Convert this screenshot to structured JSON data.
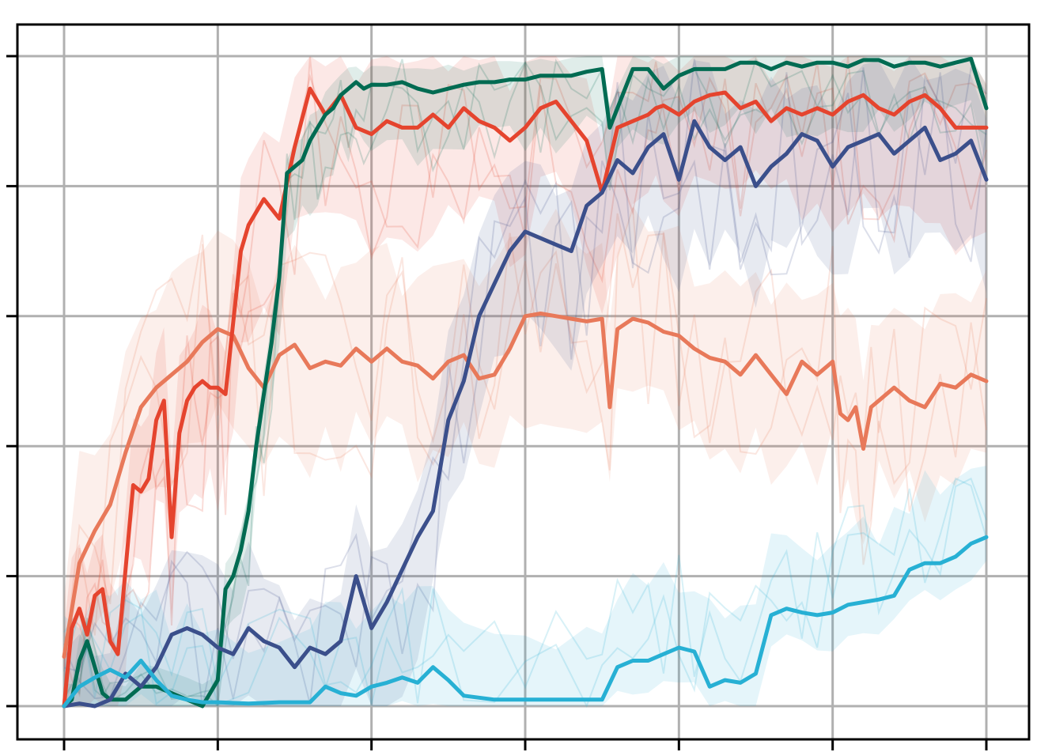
{
  "chart_data": {
    "type": "line",
    "title": "",
    "xlabel": "",
    "ylabel": "",
    "xlim": [
      0,
      6
    ],
    "ylim": [
      0,
      5
    ],
    "x_ticks": [
      0,
      1,
      2,
      3,
      4,
      5,
      6
    ],
    "y_ticks": [
      0,
      1,
      2,
      3,
      4,
      5
    ],
    "tick_labels_visible": false,
    "grid": true,
    "legend": "none",
    "bands_shown": true,
    "series": [
      {
        "color": "#e8795a",
        "x": [
          0,
          0.1,
          0.2,
          0.3,
          0.4,
          0.5,
          0.6,
          0.7,
          0.8,
          0.9,
          1.0,
          1.1,
          1.2,
          1.3,
          1.4,
          1.5,
          1.6,
          1.7,
          1.8,
          1.9,
          2.0,
          2.1,
          2.2,
          2.3,
          2.4,
          2.5,
          2.6,
          2.7,
          2.8,
          2.9,
          3.0,
          3.1,
          3.2,
          3.3,
          3.4,
          3.5,
          3.55,
          3.6,
          3.7,
          3.8,
          3.9,
          4.0,
          4.1,
          4.2,
          4.3,
          4.4,
          4.5,
          4.6,
          4.7,
          4.8,
          4.9,
          5.0,
          5.05,
          5.1,
          5.15,
          5.2,
          5.25,
          5.3,
          5.4,
          5.5,
          5.6,
          5.7,
          5.8,
          5.9,
          6.0
        ],
        "y": [
          0.38,
          1.1,
          1.35,
          1.55,
          1.95,
          2.3,
          2.45,
          2.55,
          2.65,
          2.8,
          2.9,
          2.85,
          2.6,
          2.45,
          2.7,
          2.78,
          2.6,
          2.65,
          2.62,
          2.75,
          2.65,
          2.75,
          2.65,
          2.62,
          2.52,
          2.65,
          2.7,
          2.52,
          2.55,
          2.75,
          3.0,
          3.02,
          3.0,
          2.98,
          2.96,
          2.98,
          2.3,
          2.9,
          2.98,
          2.95,
          2.88,
          2.85,
          2.75,
          2.68,
          2.65,
          2.55,
          2.7,
          2.55,
          2.4,
          2.65,
          2.55,
          2.65,
          2.25,
          2.2,
          2.3,
          1.98,
          2.3,
          2.35,
          2.45,
          2.35,
          2.3,
          2.48,
          2.45,
          2.55,
          2.5
        ],
        "band_low": 0.9,
        "band_high": 0.9
      },
      {
        "color": "#e5442e",
        "x": [
          0,
          0.05,
          0.1,
          0.15,
          0.2,
          0.25,
          0.3,
          0.35,
          0.4,
          0.45,
          0.5,
          0.55,
          0.6,
          0.65,
          0.7,
          0.75,
          0.8,
          0.85,
          0.9,
          0.95,
          1.0,
          1.05,
          1.1,
          1.15,
          1.2,
          1.3,
          1.4,
          1.5,
          1.6,
          1.7,
          1.8,
          1.9,
          2.0,
          2.1,
          2.2,
          2.3,
          2.4,
          2.5,
          2.6,
          2.7,
          2.8,
          2.9,
          3.0,
          3.1,
          3.2,
          3.3,
          3.4,
          3.5,
          3.6,
          3.7,
          3.8,
          3.85,
          3.9,
          4.0,
          4.1,
          4.2,
          4.3,
          4.4,
          4.5,
          4.6,
          4.7,
          4.8,
          4.9,
          5.0,
          5.1,
          5.2,
          5.3,
          5.4,
          5.5,
          5.6,
          5.7,
          5.8,
          5.9,
          6.0
        ],
        "y": [
          0.0,
          0.6,
          0.75,
          0.55,
          0.85,
          0.9,
          0.5,
          0.4,
          1.05,
          1.7,
          1.65,
          1.75,
          2.2,
          2.35,
          1.3,
          2.1,
          2.35,
          2.45,
          2.5,
          2.45,
          2.45,
          2.4,
          2.95,
          3.5,
          3.7,
          3.9,
          3.75,
          4.3,
          4.75,
          4.55,
          4.7,
          4.45,
          4.4,
          4.5,
          4.45,
          4.45,
          4.55,
          4.45,
          4.6,
          4.5,
          4.45,
          4.35,
          4.45,
          4.6,
          4.65,
          4.5,
          4.35,
          3.95,
          4.45,
          4.5,
          4.55,
          4.6,
          4.62,
          4.55,
          4.65,
          4.7,
          4.72,
          4.6,
          4.65,
          4.5,
          4.6,
          4.55,
          4.6,
          4.55,
          4.65,
          4.7,
          4.6,
          4.55,
          4.65,
          4.7,
          4.6,
          4.45,
          4.45,
          4.45
        ],
        "band_low": 1.0,
        "band_high": 0.6
      },
      {
        "color": "#006b52",
        "x": [
          0,
          0.05,
          0.1,
          0.15,
          0.2,
          0.25,
          0.3,
          0.4,
          0.5,
          0.6,
          0.7,
          0.8,
          0.9,
          0.95,
          1.0,
          1.05,
          1.1,
          1.15,
          1.2,
          1.25,
          1.3,
          1.35,
          1.4,
          1.45,
          1.5,
          1.55,
          1.6,
          1.65,
          1.7,
          1.75,
          1.8,
          1.85,
          1.9,
          1.95,
          2.0,
          2.1,
          2.2,
          2.3,
          2.4,
          2.5,
          2.6,
          2.7,
          2.8,
          2.9,
          3.0,
          3.1,
          3.2,
          3.3,
          3.4,
          3.5,
          3.55,
          3.6,
          3.7,
          3.8,
          3.9,
          4.0,
          4.1,
          4.2,
          4.3,
          4.4,
          4.5,
          4.6,
          4.7,
          4.8,
          4.9,
          5.0,
          5.1,
          5.2,
          5.3,
          5.4,
          5.5,
          5.6,
          5.7,
          5.8,
          5.9,
          6.0
        ],
        "y": [
          0.0,
          0.05,
          0.35,
          0.5,
          0.3,
          0.1,
          0.05,
          0.05,
          0.15,
          0.15,
          0.1,
          0.05,
          0.0,
          0.1,
          0.2,
          0.9,
          1.0,
          1.2,
          1.5,
          2.0,
          2.4,
          2.8,
          3.3,
          4.1,
          4.15,
          4.2,
          4.35,
          4.45,
          4.55,
          4.6,
          4.7,
          4.75,
          4.8,
          4.75,
          4.78,
          4.78,
          4.8,
          4.75,
          4.72,
          4.75,
          4.78,
          4.8,
          4.8,
          4.82,
          4.82,
          4.85,
          4.85,
          4.85,
          4.88,
          4.9,
          4.45,
          4.6,
          4.9,
          4.9,
          4.75,
          4.85,
          4.9,
          4.9,
          4.9,
          4.95,
          4.95,
          4.9,
          4.95,
          4.92,
          4.95,
          4.95,
          4.92,
          4.97,
          4.97,
          4.92,
          4.95,
          4.95,
          4.92,
          4.95,
          4.98,
          4.6
        ],
        "band_low": 0.6,
        "band_high": 0.2
      },
      {
        "color": "#3b4f8b",
        "x": [
          0,
          0.1,
          0.2,
          0.3,
          0.4,
          0.5,
          0.6,
          0.7,
          0.8,
          0.9,
          1.0,
          1.1,
          1.2,
          1.3,
          1.4,
          1.5,
          1.6,
          1.7,
          1.8,
          1.9,
          2.0,
          2.1,
          2.2,
          2.3,
          2.4,
          2.5,
          2.6,
          2.7,
          2.8,
          2.9,
          3.0,
          3.1,
          3.2,
          3.3,
          3.4,
          3.5,
          3.6,
          3.7,
          3.8,
          3.9,
          4.0,
          4.1,
          4.2,
          4.3,
          4.4,
          4.5,
          4.6,
          4.7,
          4.8,
          4.9,
          5.0,
          5.1,
          5.2,
          5.3,
          5.4,
          5.5,
          5.6,
          5.7,
          5.8,
          5.9,
          6.0
        ],
        "y": [
          0.0,
          0.02,
          0.0,
          0.05,
          0.25,
          0.15,
          0.3,
          0.55,
          0.6,
          0.55,
          0.45,
          0.4,
          0.6,
          0.5,
          0.45,
          0.3,
          0.45,
          0.4,
          0.5,
          1.0,
          0.6,
          0.8,
          1.05,
          1.3,
          1.5,
          2.2,
          2.5,
          3.0,
          3.25,
          3.5,
          3.65,
          3.6,
          3.55,
          3.5,
          3.85,
          3.95,
          4.2,
          4.1,
          4.3,
          4.4,
          4.05,
          4.5,
          4.3,
          4.2,
          4.3,
          4.0,
          4.15,
          4.25,
          4.4,
          4.35,
          4.15,
          4.3,
          4.35,
          4.4,
          4.25,
          4.35,
          4.45,
          4.2,
          4.25,
          4.35,
          4.05
        ],
        "band_low": 1.0,
        "band_high": 0.7
      },
      {
        "color": "#27b0d4",
        "x": [
          0,
          0.1,
          0.2,
          0.3,
          0.4,
          0.5,
          0.6,
          0.7,
          0.8,
          0.9,
          1.0,
          1.2,
          1.4,
          1.6,
          1.7,
          1.8,
          1.9,
          2.0,
          2.1,
          2.2,
          2.3,
          2.4,
          2.5,
          2.6,
          2.8,
          3.0,
          3.2,
          3.4,
          3.5,
          3.6,
          3.7,
          3.8,
          3.9,
          4.0,
          4.1,
          4.2,
          4.3,
          4.4,
          4.5,
          4.6,
          4.7,
          4.8,
          4.9,
          5.0,
          5.1,
          5.2,
          5.3,
          5.4,
          5.5,
          5.6,
          5.7,
          5.8,
          5.9,
          6.0
        ],
        "y": [
          0.0,
          0.15,
          0.22,
          0.28,
          0.22,
          0.35,
          0.2,
          0.08,
          0.05,
          0.03,
          0.03,
          0.02,
          0.03,
          0.03,
          0.15,
          0.1,
          0.08,
          0.15,
          0.18,
          0.22,
          0.18,
          0.3,
          0.2,
          0.08,
          0.05,
          0.05,
          0.05,
          0.05,
          0.05,
          0.3,
          0.35,
          0.35,
          0.4,
          0.45,
          0.42,
          0.15,
          0.2,
          0.18,
          0.25,
          0.7,
          0.75,
          0.72,
          0.7,
          0.72,
          0.78,
          0.8,
          0.82,
          0.85,
          1.05,
          1.1,
          1.1,
          1.15,
          1.25,
          1.3
        ],
        "band_low": 0.3,
        "band_high": 0.75
      }
    ]
  }
}
